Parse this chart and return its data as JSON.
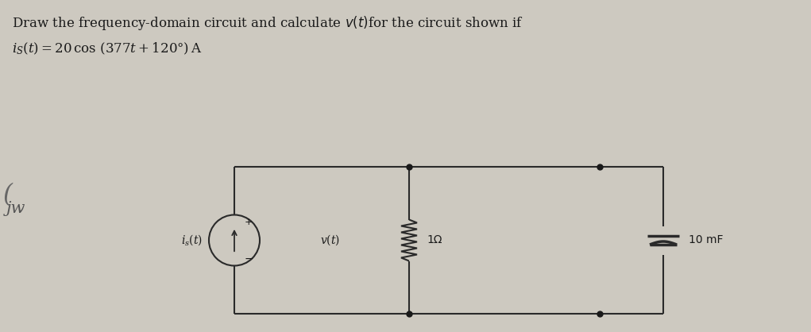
{
  "bg_color": "#cdc9c0",
  "line_color": "#2a2a2a",
  "node_color": "#1a1a1a",
  "text_color": "#1a1a1a",
  "title_line1": "Draw the frequency-domain circuit and calculate $v(t)$for the circuit shown if",
  "title_line2": "$i_S(t) = 20\\,\\cos\\,(377t + 120°)\\,\\mathrm{A}$",
  "text_is": "$i_s(t)$",
  "text_vt": "$v(t)$",
  "text_r": "1Ω",
  "text_c": "10 mF",
  "plus_label": "+",
  "minus_label": "−",
  "jw_text": "jw",
  "fig_w": 10.21,
  "fig_h": 4.18,
  "dpi": 100
}
